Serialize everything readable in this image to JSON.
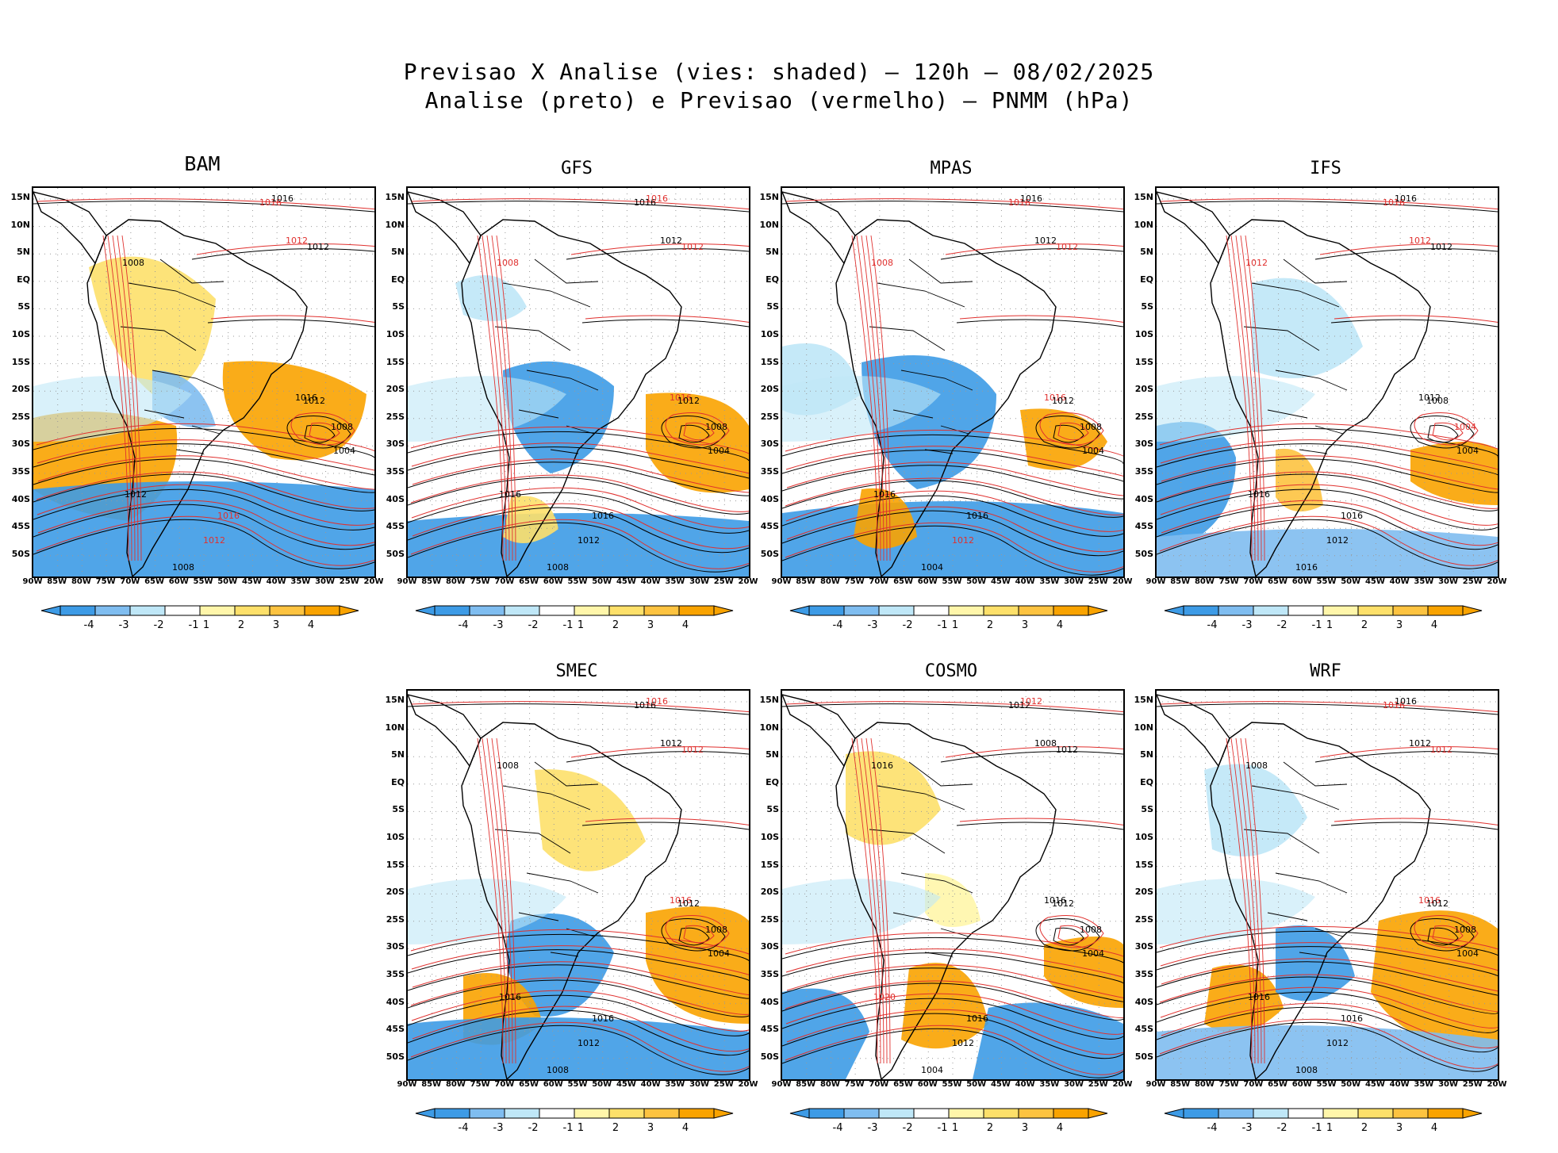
{
  "title": {
    "line1": "Previsao X Analise (vies: shaded) – 120h – 08/02/2025",
    "line2": "Analise (preto) e Previsao (vermelho) – PNMM (hPa)"
  },
  "colors": {
    "analysis_contour": "#000000",
    "forecast_contour": "#e0302e",
    "bias_neg4": "#3d9be6",
    "bias_neg3": "#7fbdf0",
    "bias_neg2": "#bfe7f7",
    "bias_neg1": "#ffffff",
    "bias_pos1": "#fff6aa",
    "bias_pos2": "#fde06a",
    "bias_pos3": "#fdc340",
    "bias_pos4": "#f9a300"
  },
  "axes": {
    "lat_labels": [
      "15N",
      "10N",
      "5N",
      "EQ",
      "5S",
      "10S",
      "15S",
      "20S",
      "25S",
      "30S",
      "35S",
      "40S",
      "45S",
      "50S"
    ],
    "lon_labels": [
      "90W",
      "85W",
      "80W",
      "75W",
      "70W",
      "65W",
      "60W",
      "55W",
      "50W",
      "45W",
      "40W",
      "35W",
      "30W",
      "25W",
      "20W"
    ]
  },
  "colorbar": {
    "labels": [
      "-4",
      "-3",
      "-2",
      "-1",
      "1",
      "2",
      "3",
      "4"
    ]
  },
  "panels": [
    {
      "name": "BAM",
      "labels": [
        {
          "t": "1016",
          "c": "red"
        },
        {
          "t": "1016",
          "c": "black"
        },
        {
          "t": "1012",
          "c": "red"
        },
        {
          "t": "1012",
          "c": "black"
        },
        {
          "t": "1008",
          "c": "black"
        },
        {
          "t": "1012",
          "c": "black"
        },
        {
          "t": "1016",
          "c": "black"
        },
        {
          "t": "1012",
          "c": "black"
        },
        {
          "t": "1008",
          "c": "black"
        },
        {
          "t": "1004",
          "c": "black"
        },
        {
          "t": "1016",
          "c": "red"
        },
        {
          "t": "1012",
          "c": "red"
        },
        {
          "t": "1008",
          "c": "black"
        }
      ]
    },
    {
      "name": "GFS",
      "labels": [
        {
          "t": "1016",
          "c": "black"
        },
        {
          "t": "1016",
          "c": "red"
        },
        {
          "t": "1012",
          "c": "black"
        },
        {
          "t": "1012",
          "c": "red"
        },
        {
          "t": "1008",
          "c": "red"
        },
        {
          "t": "1016",
          "c": "black"
        },
        {
          "t": "1016",
          "c": "red"
        },
        {
          "t": "1012",
          "c": "black"
        },
        {
          "t": "1008",
          "c": "black"
        },
        {
          "t": "1004",
          "c": "black"
        },
        {
          "t": "1016",
          "c": "black"
        },
        {
          "t": "1012",
          "c": "black"
        },
        {
          "t": "1008",
          "c": "black"
        }
      ]
    },
    {
      "name": "MPAS",
      "labels": [
        {
          "t": "1016",
          "c": "red"
        },
        {
          "t": "1016",
          "c": "black"
        },
        {
          "t": "1012",
          "c": "black"
        },
        {
          "t": "1012",
          "c": "red"
        },
        {
          "t": "1008",
          "c": "red"
        },
        {
          "t": "1016",
          "c": "black"
        },
        {
          "t": "1016",
          "c": "red"
        },
        {
          "t": "1012",
          "c": "black"
        },
        {
          "t": "1008",
          "c": "black"
        },
        {
          "t": "1004",
          "c": "black"
        },
        {
          "t": "1016",
          "c": "black"
        },
        {
          "t": "1012",
          "c": "red"
        },
        {
          "t": "1004",
          "c": "black"
        }
      ]
    },
    {
      "name": "IFS",
      "labels": [
        {
          "t": "1016",
          "c": "red"
        },
        {
          "t": "1016",
          "c": "black"
        },
        {
          "t": "1012",
          "c": "red"
        },
        {
          "t": "1012",
          "c": "black"
        },
        {
          "t": "1012",
          "c": "red"
        },
        {
          "t": "1016",
          "c": "black"
        },
        {
          "t": "1012",
          "c": "black"
        },
        {
          "t": "1008",
          "c": "black"
        },
        {
          "t": "1004",
          "c": "red"
        },
        {
          "t": "1004",
          "c": "black"
        },
        {
          "t": "1016",
          "c": "black"
        },
        {
          "t": "1012",
          "c": "black"
        },
        {
          "t": "1016",
          "c": "black"
        }
      ]
    },
    {
      "name": "SMEC",
      "labels": [
        {
          "t": "1016",
          "c": "black"
        },
        {
          "t": "1016",
          "c": "red"
        },
        {
          "t": "1012",
          "c": "black"
        },
        {
          "t": "1012",
          "c": "red"
        },
        {
          "t": "1008",
          "c": "black"
        },
        {
          "t": "1016",
          "c": "black"
        },
        {
          "t": "1016",
          "c": "red"
        },
        {
          "t": "1012",
          "c": "black"
        },
        {
          "t": "1008",
          "c": "black"
        },
        {
          "t": "1004",
          "c": "black"
        },
        {
          "t": "1016",
          "c": "black"
        },
        {
          "t": "1012",
          "c": "black"
        },
        {
          "t": "1008",
          "c": "black"
        }
      ]
    },
    {
      "name": "COSMO",
      "labels": [
        {
          "t": "1012",
          "c": "black"
        },
        {
          "t": "1012",
          "c": "red"
        },
        {
          "t": "1008",
          "c": "black"
        },
        {
          "t": "1012",
          "c": "black"
        },
        {
          "t": "1016",
          "c": "black"
        },
        {
          "t": "1020",
          "c": "red"
        },
        {
          "t": "1016",
          "c": "black"
        },
        {
          "t": "1012",
          "c": "black"
        },
        {
          "t": "1008",
          "c": "black"
        },
        {
          "t": "1004",
          "c": "black"
        },
        {
          "t": "1016",
          "c": "black"
        },
        {
          "t": "1012",
          "c": "black"
        },
        {
          "t": "1004",
          "c": "black"
        }
      ]
    },
    {
      "name": "WRF",
      "labels": [
        {
          "t": "1016",
          "c": "red"
        },
        {
          "t": "1016",
          "c": "black"
        },
        {
          "t": "1012",
          "c": "black"
        },
        {
          "t": "1012",
          "c": "red"
        },
        {
          "t": "1008",
          "c": "black"
        },
        {
          "t": "1016",
          "c": "black"
        },
        {
          "t": "1016",
          "c": "red"
        },
        {
          "t": "1012",
          "c": "black"
        },
        {
          "t": "1008",
          "c": "black"
        },
        {
          "t": "1004",
          "c": "black"
        },
        {
          "t": "1016",
          "c": "black"
        },
        {
          "t": "1012",
          "c": "black"
        },
        {
          "t": "1008",
          "c": "black"
        }
      ]
    }
  ]
}
